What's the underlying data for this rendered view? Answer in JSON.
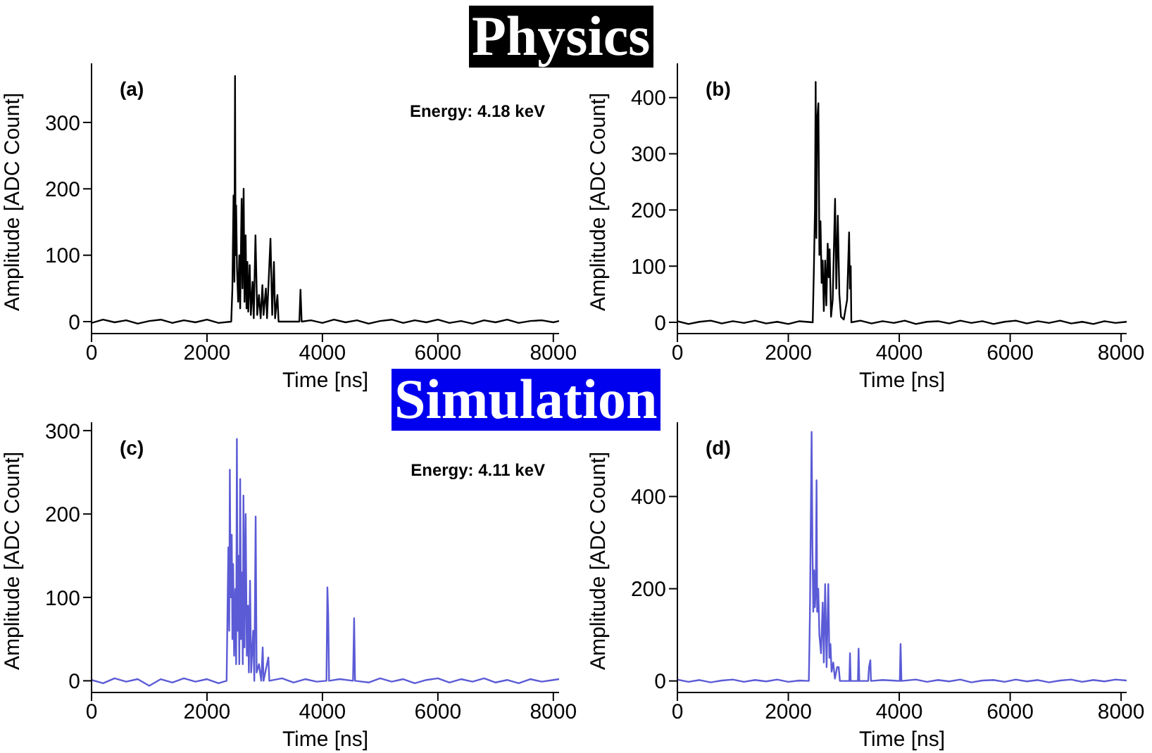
{
  "chart_data": [
    {
      "type": "line",
      "title": "Physics",
      "annotations": [
        "(a)",
        "Energy: 4.18 keV"
      ],
      "xlabel": "Time [ns]",
      "ylabel": "Amplitude [ADC Count]",
      "xlim": [
        0,
        8100
      ],
      "xticks": [
        0,
        2000,
        4000,
        6000,
        8000
      ],
      "ylim": [
        -18,
        389
      ],
      "yticks": [
        0,
        100,
        200,
        300
      ],
      "x": [
        0,
        200,
        400,
        600,
        800,
        1000,
        1200,
        1400,
        1600,
        1800,
        2000,
        2200,
        2420,
        2440,
        2460,
        2475,
        2486,
        2495,
        2505,
        2520,
        2540,
        2560,
        2575,
        2600,
        2615,
        2635,
        2650,
        2670,
        2685,
        2700,
        2715,
        2740,
        2760,
        2790,
        2810,
        2840,
        2870,
        2900,
        2930,
        2960,
        2980,
        3020,
        3040,
        3100,
        3130,
        3160,
        3180,
        3220,
        3240,
        3600,
        3620,
        3640,
        3800,
        4000,
        4200,
        4400,
        4600,
        4800,
        5000,
        5200,
        5400,
        5600,
        5800,
        6000,
        6200,
        6400,
        6600,
        6800,
        7000,
        7200,
        7400,
        7600,
        7800,
        8000,
        8100
      ],
      "series": [
        {
          "color": "#000000",
          "values": [
            -2,
            3,
            -1,
            2,
            -3,
            1,
            3,
            -2,
            2,
            -1,
            3,
            -2,
            0,
            50,
            190,
            60,
            370,
            100,
            175,
            80,
            30,
            100,
            20,
            185,
            50,
            200,
            30,
            130,
            20,
            90,
            15,
            85,
            10,
            60,
            5,
            130,
            10,
            40,
            5,
            55,
            10,
            50,
            5,
            125,
            10,
            90,
            5,
            40,
            0,
            0,
            48,
            0,
            2,
            -2,
            3,
            -1,
            2,
            -3,
            1,
            3,
            -2,
            2,
            -1,
            3,
            -2,
            1,
            -3,
            2,
            -1,
            3,
            -2,
            1,
            2,
            -1,
            1
          ]
        }
      ]
    },
    {
      "type": "line",
      "annotations": [
        "(b)"
      ],
      "xlabel": "Time [ns]",
      "ylabel": "Amplitude [ADC Count]",
      "xlim": [
        0,
        8100
      ],
      "xticks": [
        0,
        2000,
        4000,
        6000,
        8000
      ],
      "ylim": [
        -20,
        461
      ],
      "yticks": [
        0,
        100,
        200,
        300,
        400
      ],
      "x": [
        0,
        200,
        400,
        600,
        800,
        1000,
        1200,
        1400,
        1600,
        1800,
        2000,
        2200,
        2440,
        2460,
        2480,
        2493,
        2505,
        2520,
        2542,
        2560,
        2580,
        2600,
        2620,
        2640,
        2664,
        2685,
        2710,
        2729,
        2745,
        2770,
        2800,
        2843,
        2865,
        2892,
        2920,
        2950,
        3000,
        3060,
        3096,
        3110,
        3125,
        3136,
        3300,
        3500,
        3700,
        3900,
        4100,
        4300,
        4500,
        4700,
        4900,
        5100,
        5300,
        5500,
        5700,
        5900,
        6100,
        6300,
        6500,
        6700,
        6900,
        7100,
        7300,
        7500,
        7700,
        7900,
        8100
      ],
      "series": [
        {
          "color": "#000000",
          "values": [
            2,
            -3,
            1,
            3,
            -2,
            2,
            -1,
            3,
            -2,
            1,
            -3,
            2,
            0,
            90,
            200,
            428,
            150,
            360,
            390,
            120,
            180,
            70,
            110,
            20,
            110,
            30,
            140,
            80,
            130,
            10,
            40,
            220,
            60,
            190,
            50,
            10,
            5,
            40,
            160,
            60,
            100,
            0,
            3,
            -2,
            2,
            -1,
            3,
            -3,
            1,
            2,
            -2,
            3,
            -1,
            2,
            -3,
            1,
            3,
            -2,
            2,
            -1,
            3,
            -2,
            1,
            -3,
            2,
            -1,
            1
          ]
        }
      ]
    },
    {
      "type": "line",
      "title": "Simulation",
      "annotations": [
        "(c)",
        "Energy: 4.11 keV"
      ],
      "xlabel": "Time [ns]",
      "ylabel": "Amplitude [ADC Count]",
      "xlim": [
        0,
        8100
      ],
      "xticks": [
        0,
        2000,
        4000,
        6000,
        8000
      ],
      "ylim": [
        -14,
        310
      ],
      "yticks": [
        0,
        100,
        200,
        300
      ],
      "x": [
        0,
        200,
        400,
        600,
        800,
        1000,
        1200,
        1400,
        1600,
        1800,
        2000,
        2200,
        2340,
        2370,
        2385,
        2396,
        2410,
        2429,
        2440,
        2453,
        2470,
        2490,
        2505,
        2518,
        2530,
        2545,
        2560,
        2575,
        2590,
        2610,
        2620,
        2632,
        2650,
        2670,
        2690,
        2710,
        2725,
        2746,
        2765,
        2800,
        2820,
        2843,
        2860,
        2900,
        2940,
        2965,
        2980,
        3063,
        3080,
        3300,
        3500,
        3700,
        3900,
        4070,
        4086,
        4100,
        4115,
        4300,
        4530,
        4549,
        4565,
        4800,
        5000,
        5200,
        5400,
        5600,
        5800,
        6000,
        6200,
        6400,
        6600,
        6800,
        7000,
        7200,
        7400,
        7600,
        7800,
        8000,
        8100
      ],
      "series": [
        {
          "color": "#5b5bd6",
          "values": [
            1,
            -3,
            3,
            -1,
            2,
            -6,
            2,
            -2,
            3,
            -1,
            2,
            -3,
            0,
            160,
            60,
            253,
            100,
            175,
            50,
            140,
            30,
            110,
            20,
            290,
            60,
            150,
            20,
            242,
            50,
            130,
            20,
            222,
            40,
            200,
            30,
            90,
            10,
            120,
            10,
            60,
            0,
            197,
            10,
            20,
            0,
            40,
            0,
            28,
            0,
            3,
            -2,
            2,
            -1,
            0,
            112,
            80,
            0,
            2,
            0,
            75,
            0,
            -2,
            3,
            -1,
            2,
            -3,
            1,
            3,
            -2,
            2,
            -1,
            3,
            -2,
            1,
            -3,
            2,
            -1,
            1,
            2
          ]
        }
      ]
    },
    {
      "type": "line",
      "annotations": [
        "(d)"
      ],
      "xlabel": "Time [ns]",
      "ylabel": "Amplitude [ADC Count]",
      "xlim": [
        0,
        8100
      ],
      "xticks": [
        0,
        2000,
        4000,
        6000,
        8000
      ],
      "ylim": [
        -25,
        561
      ],
      "yticks": [
        0,
        200,
        400
      ],
      "x": [
        0,
        200,
        400,
        600,
        800,
        1000,
        1200,
        1400,
        1600,
        1800,
        2000,
        2200,
        2370,
        2390,
        2420,
        2435,
        2450,
        2465,
        2480,
        2495,
        2509,
        2520,
        2540,
        2560,
        2590,
        2620,
        2640,
        2664,
        2690,
        2721,
        2740,
        2760,
        2780,
        2810,
        2840,
        2880,
        2908,
        2930,
        3100,
        3112,
        3125,
        3255,
        3267,
        3280,
        3440,
        3455,
        3479,
        3490,
        3700,
        4010,
        4024,
        4040,
        4300,
        4500,
        4700,
        4900,
        5100,
        5300,
        5500,
        5700,
        5900,
        6100,
        6300,
        6500,
        6700,
        6900,
        7100,
        7300,
        7500,
        7700,
        7900,
        8100
      ],
      "series": [
        {
          "color": "#5b5bd6",
          "values": [
            3,
            -2,
            2,
            -3,
            1,
            3,
            -2,
            2,
            -1,
            3,
            -2,
            1,
            0,
            150,
            540,
            290,
            150,
            240,
            160,
            200,
            435,
            150,
            200,
            100,
            60,
            170,
            40,
            210,
            30,
            210,
            50,
            80,
            20,
            40,
            5,
            30,
            30,
            0,
            0,
            60,
            0,
            0,
            70,
            0,
            0,
            30,
            45,
            0,
            2,
            0,
            80,
            0,
            3,
            -2,
            2,
            -1,
            3,
            -3,
            1,
            2,
            -2,
            3,
            -1,
            2,
            -3,
            1,
            3,
            -2,
            2,
            -1,
            3,
            1
          ]
        }
      ]
    }
  ]
}
